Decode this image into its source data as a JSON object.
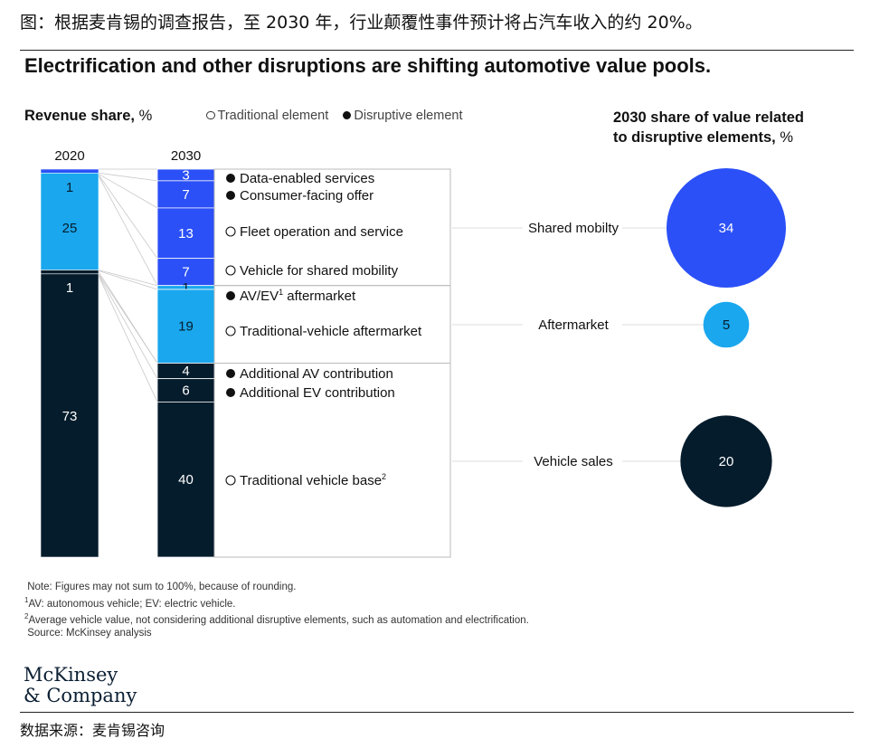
{
  "caption": "图：根据麦肯锡的调查报告，至 2030 年，行业颠覆性事件预计将占汽车收入的约 20%。",
  "headline": "Electrification and other disruptions are shifting automotive value pools.",
  "revenue_title": "Revenue share,",
  "revenue_unit": "%",
  "legend": {
    "traditional": "Traditional element",
    "disruptive": "Disruptive element"
  },
  "share_title_line1": "2030 share of value related",
  "share_title_line2": "to disruptive elements,",
  "share_title_unit": "%",
  "colors": {
    "shared_mobility": "#2b50f7",
    "aftermarket": "#1aa7ee",
    "vehicle_sales": "#051c2c",
    "connector": "#c8c8c8",
    "box": "#bbbbbb"
  },
  "chart_data": {
    "type": "stacked-bar",
    "years": [
      "2020",
      "2030"
    ],
    "segments_2020": [
      {
        "group": "shared_mobility",
        "value": 1,
        "label": "1"
      },
      {
        "group": "aftermarket",
        "value": 25,
        "label": "25"
      },
      {
        "group": "vehicle_sales",
        "value": 1,
        "label": "1"
      },
      {
        "group": "vehicle_sales",
        "value": 73,
        "label": "73"
      }
    ],
    "segments_2030": [
      {
        "group": "shared_mobility",
        "value": 3,
        "label": "3",
        "name": "Data-enabled services",
        "element": "disruptive"
      },
      {
        "group": "shared_mobility",
        "value": 7,
        "label": "7",
        "name": "Consumer-facing offer",
        "element": "disruptive"
      },
      {
        "group": "shared_mobility",
        "value": 13,
        "label": "13",
        "name": "Fleet operation and service",
        "element": "traditional"
      },
      {
        "group": "shared_mobility",
        "value": 7,
        "label": "7",
        "name": "Vehicle for shared mobility",
        "element": "traditional"
      },
      {
        "group": "aftermarket",
        "value": 1,
        "label": "1",
        "name": "AV/EV",
        "sup": "1",
        "suffix": " aftermarket",
        "element": "disruptive"
      },
      {
        "group": "aftermarket",
        "value": 19,
        "label": "19",
        "name": "Traditional-vehicle aftermarket",
        "element": "traditional"
      },
      {
        "group": "vehicle_sales",
        "value": 4,
        "label": "4",
        "name": "Additional AV contribution",
        "element": "disruptive"
      },
      {
        "group": "vehicle_sales",
        "value": 6,
        "label": "6",
        "name": "Additional EV contribution",
        "element": "disruptive"
      },
      {
        "group": "vehicle_sales",
        "value": 40,
        "label": "40",
        "name": "Traditional vehicle base",
        "sup": "2",
        "suffix": "",
        "element": "traditional"
      }
    ],
    "bubbles": [
      {
        "name": "Shared mobilty",
        "group": "shared_mobility",
        "value": 34
      },
      {
        "name": "Aftermarket",
        "group": "aftermarket",
        "value": 5
      },
      {
        "name": "Vehicle sales",
        "group": "vehicle_sales",
        "value": 20
      }
    ]
  },
  "notes": {
    "n0": "Note: Figures may not sum to 100%, because of rounding.",
    "n1_mark": "1",
    "n1": "AV: autonomous vehicle; EV: electric vehicle.",
    "n2_mark": "2",
    "n2": "Average vehicle value, not considering additional disruptive elements, such as automation and electrification.",
    "n3": "Source: McKinsey analysis"
  },
  "brand_line1": "McKinsey",
  "brand_line2": "& Company",
  "source": "数据来源：麦肯锡咨询"
}
